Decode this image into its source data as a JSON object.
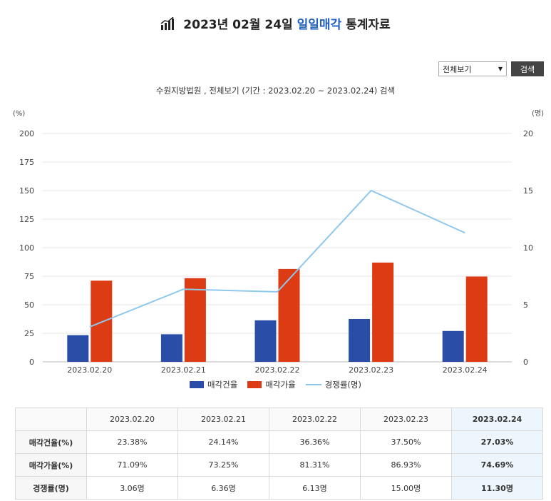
{
  "header": {
    "title_prefix": "2023년 02월 24일",
    "title_highlight": "일일매각",
    "title_suffix": "통계자료"
  },
  "controls": {
    "select_value": "전체보기",
    "search_label": "검색"
  },
  "subtitle": "수원지방법원 , 전체보기 (기간 : 2023.02.20 ~ 2023.02.24) 검색",
  "chart_data": {
    "type": "bar",
    "categories": [
      "2023.02.20",
      "2023.02.21",
      "2023.02.22",
      "2023.02.23",
      "2023.02.24"
    ],
    "series": [
      {
        "name": "매각건율",
        "type": "bar",
        "axis": "left",
        "color": "#2a4ea8",
        "values": [
          23.38,
          24.14,
          36.36,
          37.5,
          27.03
        ]
      },
      {
        "name": "매각가율",
        "type": "bar",
        "axis": "left",
        "color": "#dd3b14",
        "values": [
          71.09,
          73.25,
          81.31,
          86.93,
          74.69
        ]
      },
      {
        "name": "경쟁률(명)",
        "type": "line",
        "axis": "right",
        "color": "#8ec8ee",
        "values": [
          3.06,
          6.36,
          6.13,
          15.0,
          11.3
        ]
      }
    ],
    "y_left": {
      "unit": "(%)",
      "ylim": [
        0,
        200
      ],
      "ticks": [
        "0",
        "25",
        "50",
        "75",
        "100",
        "125",
        "150",
        "175",
        "200"
      ]
    },
    "y_right": {
      "unit": "(명)",
      "ylim": [
        0,
        20
      ],
      "ticks": [
        "0",
        "5",
        "10",
        "15",
        "20"
      ]
    },
    "grid": true,
    "legend_position": "bottom"
  },
  "table": {
    "headers": [
      "",
      "2023.02.20",
      "2023.02.21",
      "2023.02.22",
      "2023.02.23",
      "2023.02.24"
    ],
    "rows": [
      {
        "label": "매각건율(%)",
        "cells": [
          "23.38%",
          "24.14%",
          "36.36%",
          "37.50%",
          "27.03%"
        ]
      },
      {
        "label": "매각가율(%)",
        "cells": [
          "71.09%",
          "73.25%",
          "81.31%",
          "86.93%",
          "74.69%"
        ]
      },
      {
        "label": "경쟁률(명)",
        "cells": [
          "3.06명",
          "6.36명",
          "6.13명",
          "15.00명",
          "11.30명"
        ]
      }
    ]
  }
}
